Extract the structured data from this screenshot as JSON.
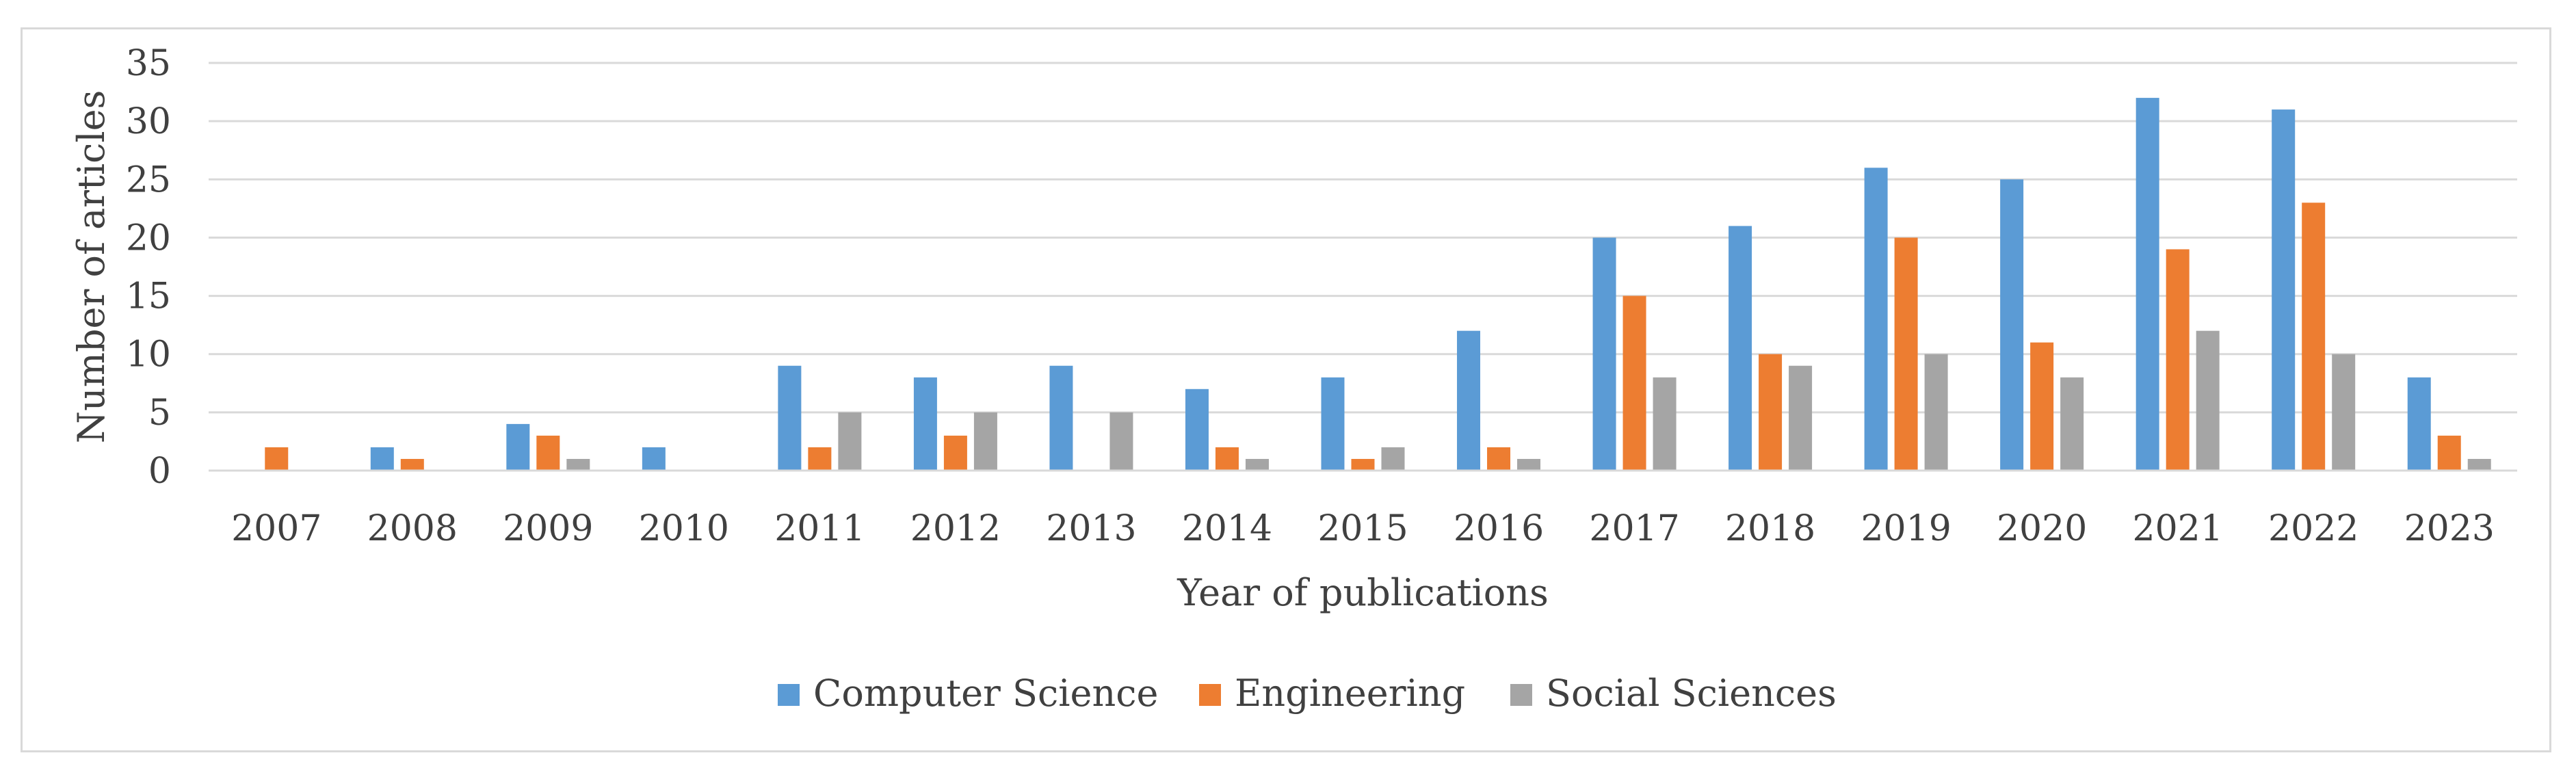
{
  "chart_data": {
    "type": "bar",
    "title": "",
    "xlabel": "Year of publications",
    "ylabel": "Number of articles",
    "ylim": [
      0,
      35
    ],
    "ytick_step": 5,
    "grid": true,
    "legend_position": "bottom-center",
    "categories": [
      "2007",
      "2008",
      "2009",
      "2010",
      "2011",
      "2012",
      "2013",
      "2014",
      "2015",
      "2016",
      "2017",
      "2018",
      "2019",
      "2020",
      "2021",
      "2022",
      "2023"
    ],
    "series": [
      {
        "name": "Computer Science",
        "color": "#5b9bd5",
        "values": [
          0,
          2,
          4,
          2,
          9,
          8,
          9,
          7,
          8,
          12,
          20,
          21,
          26,
          25,
          32,
          31,
          8
        ]
      },
      {
        "name": "Engineering",
        "color": "#ed7d31",
        "values": [
          2,
          1,
          3,
          0,
          2,
          3,
          0,
          2,
          1,
          2,
          15,
          10,
          20,
          11,
          19,
          23,
          3
        ]
      },
      {
        "name": "Social Sciences",
        "color": "#a5a5a5",
        "values": [
          0,
          0,
          1,
          0,
          5,
          5,
          5,
          1,
          2,
          1,
          8,
          9,
          10,
          8,
          12,
          10,
          1
        ]
      }
    ]
  }
}
